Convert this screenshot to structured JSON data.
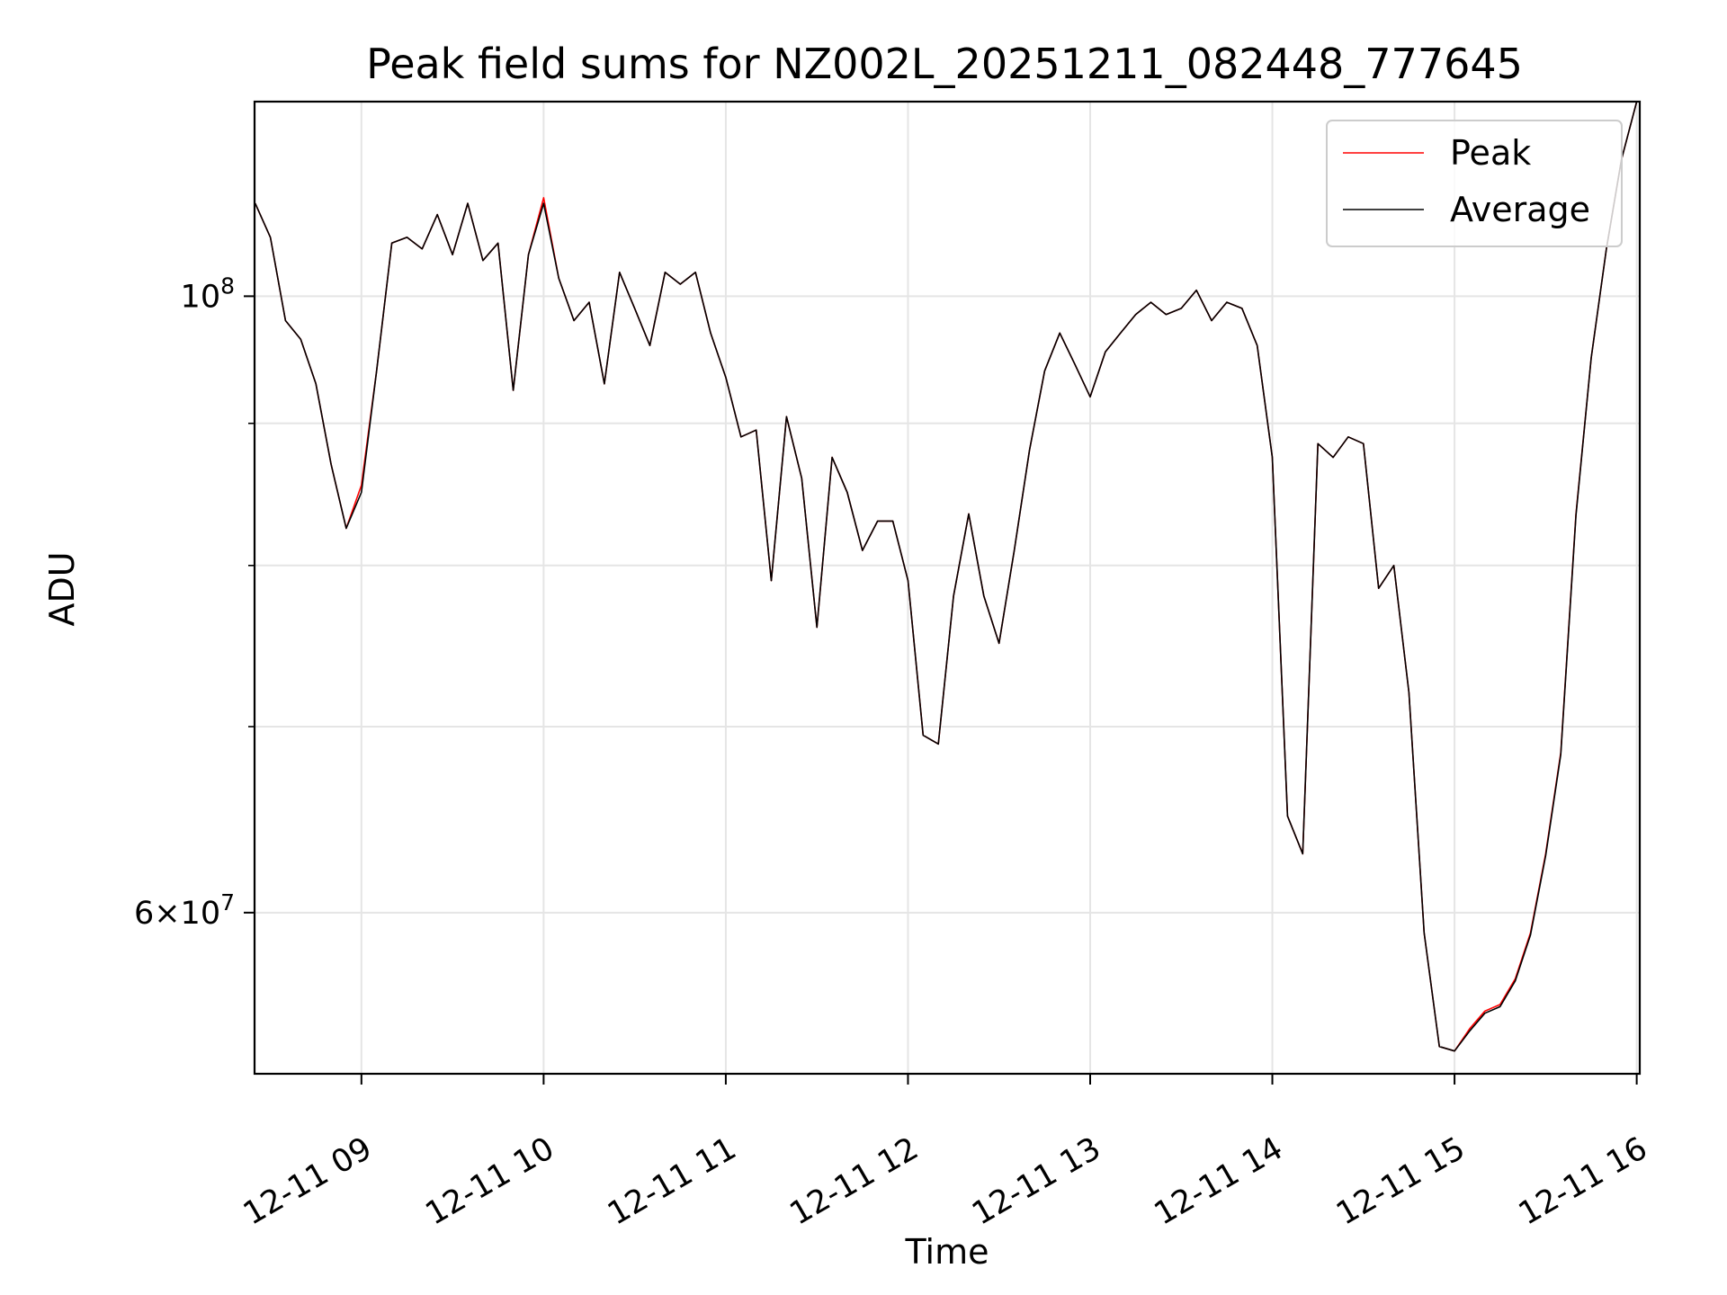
{
  "chart_data": {
    "type": "line",
    "title": "Peak field sums for NZ002L_20251211_082448_777645",
    "xlabel": "Time",
    "ylabel": "ADU",
    "xlim": [
      "2025-12-11 08:24:48",
      "2025-12-11 16:01"
    ],
    "ylim": [
      52500000,
      117500000
    ],
    "yscale": "log",
    "grid": true,
    "legend_position": "top-right",
    "x_ticks": [
      "12-11 09",
      "12-11 10",
      "12-11 11",
      "12-11 12",
      "12-11 13",
      "12-11 14",
      "12-11 15",
      "12-11 16"
    ],
    "y_tick_labels": [
      {
        "value": 100000000,
        "mantissa": "",
        "base": "10",
        "exp": "8"
      },
      {
        "value": 60000000,
        "mantissa": "6×",
        "base": "10",
        "exp": "7"
      }
    ],
    "y_minor_ticks": [
      90000000,
      80000000,
      70000000,
      50000000
    ],
    "colors": {
      "Peak": "#ff0000",
      "Average": "#000000"
    },
    "x": [
      "08:25",
      "08:30",
      "08:35",
      "08:40",
      "08:45",
      "08:50",
      "08:55",
      "09:00",
      "09:05",
      "09:10",
      "09:15",
      "09:20",
      "09:25",
      "09:30",
      "09:35",
      "09:40",
      "09:45",
      "09:50",
      "09:55",
      "10:00",
      "10:05",
      "10:10",
      "10:15",
      "10:20",
      "10:25",
      "10:30",
      "10:35",
      "10:40",
      "10:45",
      "10:50",
      "10:55",
      "11:00",
      "11:05",
      "11:10",
      "11:15",
      "11:20",
      "11:25",
      "11:30",
      "11:35",
      "11:40",
      "11:45",
      "11:50",
      "11:55",
      "12:00",
      "12:05",
      "12:10",
      "12:15",
      "12:20",
      "12:25",
      "12:30",
      "12:35",
      "12:40",
      "12:45",
      "12:50",
      "12:55",
      "13:00",
      "13:05",
      "13:10",
      "13:15",
      "13:20",
      "13:25",
      "13:30",
      "13:35",
      "13:40",
      "13:45",
      "13:50",
      "13:55",
      "14:00",
      "14:05",
      "14:10",
      "14:15",
      "14:20",
      "14:25",
      "14:30",
      "14:35",
      "14:40",
      "14:45",
      "14:50",
      "14:55",
      "15:00",
      "15:05",
      "15:10",
      "15:15",
      "15:20",
      "15:25",
      "15:30",
      "15:35",
      "15:40",
      "15:45",
      "15:50",
      "15:55",
      "16:00"
    ],
    "series": [
      {
        "name": "Peak",
        "values": [
          108000000,
          105000000,
          98000000,
          96500000,
          93000000,
          87000000,
          82500000,
          85500000,
          94000000,
          104500000,
          105000000,
          104000000,
          107000000,
          103500000,
          108000000,
          103000000,
          104500000,
          92500000,
          103500000,
          108500000,
          101500000,
          98000000,
          99500000,
          93000000,
          102000000,
          99000000,
          96000000,
          102000000,
          101000000,
          102000000,
          97000000,
          93500000,
          89000000,
          89500000,
          79000000,
          90500000,
          86000000,
          76000000,
          87500000,
          85000000,
          81000000,
          83000000,
          83000000,
          79000000,
          69500000,
          69000000,
          78000000,
          83500000,
          78000000,
          75000000,
          81000000,
          88000000,
          94000000,
          97000000,
          94500000,
          92000000,
          95500000,
          97000000,
          98500000,
          99500000,
          98500000,
          99000000,
          100500000,
          98000000,
          99500000,
          99000000,
          96000000,
          87500000,
          65000000,
          63000000,
          88500000,
          87500000,
          89000000,
          88500000,
          78500000,
          80000000,
          72000000,
          59000000,
          53700000,
          53500000,
          54500000,
          55300000,
          55600000,
          56800000,
          59000000,
          63000000,
          68500000,
          83500000,
          95000000,
          104000000,
          112000000,
          117500000
        ]
      },
      {
        "name": "Average",
        "values": [
          108000000,
          105000000,
          98000000,
          96500000,
          93000000,
          87000000,
          82500000,
          85000000,
          94000000,
          104500000,
          105000000,
          104000000,
          107000000,
          103500000,
          108000000,
          103000000,
          104500000,
          92500000,
          103500000,
          108000000,
          101500000,
          98000000,
          99500000,
          93000000,
          102000000,
          99000000,
          96000000,
          102000000,
          101000000,
          102000000,
          97000000,
          93500000,
          89000000,
          89500000,
          79000000,
          90500000,
          86000000,
          76000000,
          87500000,
          85000000,
          81000000,
          83000000,
          83000000,
          79000000,
          69500000,
          69000000,
          78000000,
          83500000,
          78000000,
          75000000,
          81000000,
          88000000,
          94000000,
          97000000,
          94500000,
          92000000,
          95500000,
          97000000,
          98500000,
          99500000,
          98500000,
          99000000,
          100500000,
          98000000,
          99500000,
          99000000,
          96000000,
          87500000,
          65000000,
          63000000,
          88500000,
          87500000,
          89000000,
          88500000,
          78500000,
          80000000,
          72000000,
          59000000,
          53700000,
          53500000,
          54400000,
          55200000,
          55500000,
          56700000,
          58900000,
          62900000,
          68400000,
          83400000,
          95000000,
          104000000,
          112000000,
          117500000
        ]
      }
    ]
  }
}
